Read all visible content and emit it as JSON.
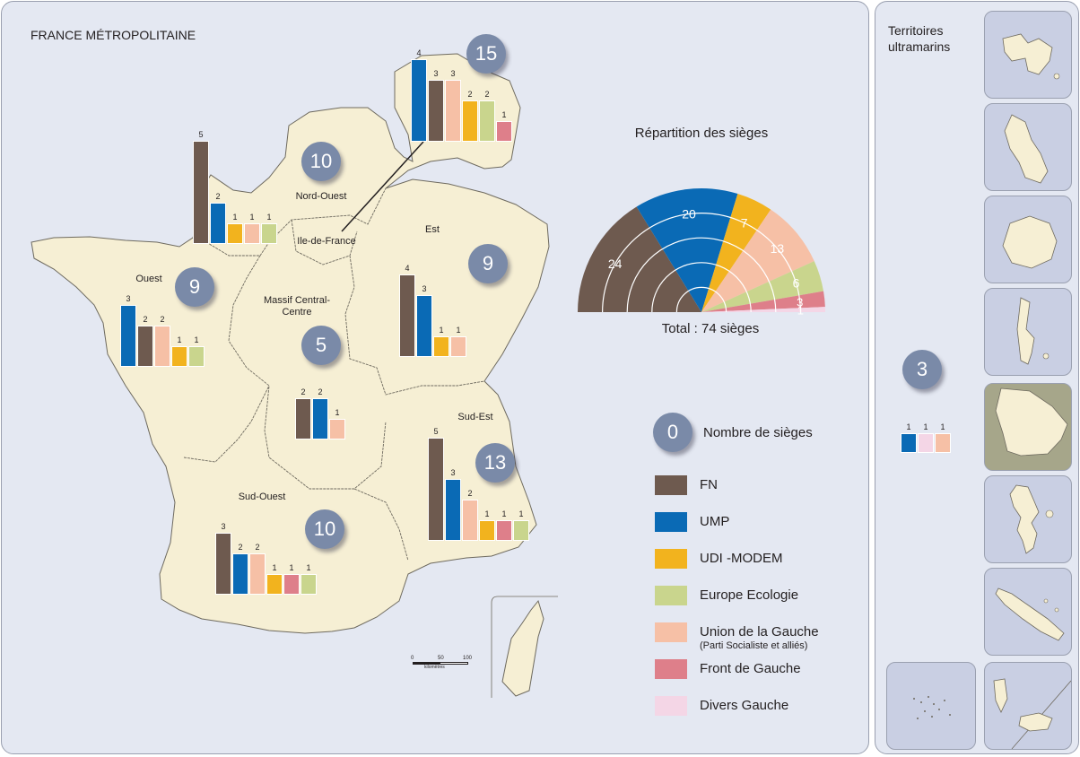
{
  "title": "FRANCE MÉTROPOLITAINE",
  "territories_title_line1": "Territoires",
  "territories_title_line2": "ultramarins",
  "colors": {
    "FN": "#6e5a4f",
    "UMP": "#0a6ab5",
    "UDI-MODEM": "#f2b31e",
    "Europe Ecologie": "#c9d58d",
    "Union de la Gauche": "#f6c0a6",
    "Front de Gauche": "#de7f8a",
    "Divers Gauche": "#f4d6e6"
  },
  "regions": [
    {
      "key": "nord-ouest",
      "name": "Nord-Ouest",
      "total": "10",
      "bars": [
        {
          "party": "FN",
          "value": 5
        },
        {
          "party": "UMP",
          "value": 2
        },
        {
          "party": "UDI-MODEM",
          "value": 1
        },
        {
          "party": "Union de la Gauche",
          "value": 1
        },
        {
          "party": "Europe Ecologie",
          "value": 1
        }
      ]
    },
    {
      "key": "ile-de-france",
      "name": "Ile-de-France",
      "total": "15",
      "bars": [
        {
          "party": "UMP",
          "value": 4
        },
        {
          "party": "FN",
          "value": 3
        },
        {
          "party": "Union de la Gauche",
          "value": 3
        },
        {
          "party": "UDI-MODEM",
          "value": 2
        },
        {
          "party": "Europe Ecologie",
          "value": 2
        },
        {
          "party": "Front de Gauche",
          "value": 1
        }
      ]
    },
    {
      "key": "est",
      "name": "Est",
      "total": "9",
      "bars": [
        {
          "party": "FN",
          "value": 4
        },
        {
          "party": "UMP",
          "value": 3
        },
        {
          "party": "UDI-MODEM",
          "value": 1
        },
        {
          "party": "Union de la Gauche",
          "value": 1
        }
      ]
    },
    {
      "key": "ouest",
      "name": "Ouest",
      "total": "9",
      "bars": [
        {
          "party": "UMP",
          "value": 3
        },
        {
          "party": "FN",
          "value": 2
        },
        {
          "party": "Union de la Gauche",
          "value": 2
        },
        {
          "party": "UDI-MODEM",
          "value": 1
        },
        {
          "party": "Europe Ecologie",
          "value": 1
        }
      ]
    },
    {
      "key": "massif-central",
      "name": "Massif Central-Centre",
      "total": "5",
      "bars": [
        {
          "party": "FN",
          "value": 2
        },
        {
          "party": "UMP",
          "value": 2
        },
        {
          "party": "Union de la Gauche",
          "value": 1
        }
      ]
    },
    {
      "key": "sud-est",
      "name": "Sud-Est",
      "total": "13",
      "bars": [
        {
          "party": "FN",
          "value": 5
        },
        {
          "party": "UMP",
          "value": 3
        },
        {
          "party": "Union de la Gauche",
          "value": 2
        },
        {
          "party": "UDI-MODEM",
          "value": 1
        },
        {
          "party": "Front de Gauche",
          "value": 1
        },
        {
          "party": "Europe Ecologie",
          "value": 1
        }
      ]
    },
    {
      "key": "sud-ouest",
      "name": "Sud-Ouest",
      "total": "10",
      "bars": [
        {
          "party": "FN",
          "value": 3
        },
        {
          "party": "UMP",
          "value": 2
        },
        {
          "party": "Union de la Gauche",
          "value": 2
        },
        {
          "party": "UDI-MODEM",
          "value": 1
        },
        {
          "party": "Front de Gauche",
          "value": 1
        },
        {
          "party": "Europe Ecologie",
          "value": 1
        }
      ]
    },
    {
      "key": "outre-mer",
      "name": "",
      "total": "3",
      "bars": [
        {
          "party": "UMP",
          "value": 1
        },
        {
          "party": "Divers Gauche",
          "value": 1
        },
        {
          "party": "Union de la Gauche",
          "value": 1
        }
      ]
    }
  ],
  "seat_chart": {
    "title": "Répartition des sièges",
    "total_label": "Total : 74 sièges",
    "slices": [
      {
        "party": "FN",
        "value": 24
      },
      {
        "party": "UMP",
        "value": 20
      },
      {
        "party": "UDI-MODEM",
        "value": 7
      },
      {
        "party": "Union de la Gauche",
        "value": 13
      },
      {
        "party": "Europe Ecologie",
        "value": 6
      },
      {
        "party": "Front de Gauche",
        "value": 3
      },
      {
        "party": "Divers Gauche",
        "value": 1
      }
    ]
  },
  "legend": {
    "bubble_value": "0",
    "bubble_label": "Nombre de sièges",
    "items": [
      {
        "party": "FN",
        "label": "FN",
        "sublabel": ""
      },
      {
        "party": "UMP",
        "label": "UMP",
        "sublabel": ""
      },
      {
        "party": "UDI-MODEM",
        "label": "UDI -MODEM",
        "sublabel": ""
      },
      {
        "party": "Europe Ecologie",
        "label": "Europe Ecologie",
        "sublabel": ""
      },
      {
        "party": "Union de la Gauche",
        "label": "Union de la Gauche",
        "sublabel": "(Parti Socialiste et alliés)"
      },
      {
        "party": "Front de Gauche",
        "label": "Front de Gauche",
        "sublabel": ""
      },
      {
        "party": "Divers Gauche",
        "label": "Divers Gauche",
        "sublabel": ""
      }
    ]
  },
  "scale_bar": {
    "ticks": [
      "0",
      "50",
      "100"
    ],
    "unit": "kilomètres"
  },
  "territory_icons": [
    "guadeloupe",
    "martinique",
    "reunion",
    "saint-pierre-et-miquelon",
    "guyane",
    "mayotte",
    "nouvelle-caledonie",
    "polynesie-francaise",
    "wallis-et-futuna"
  ]
}
